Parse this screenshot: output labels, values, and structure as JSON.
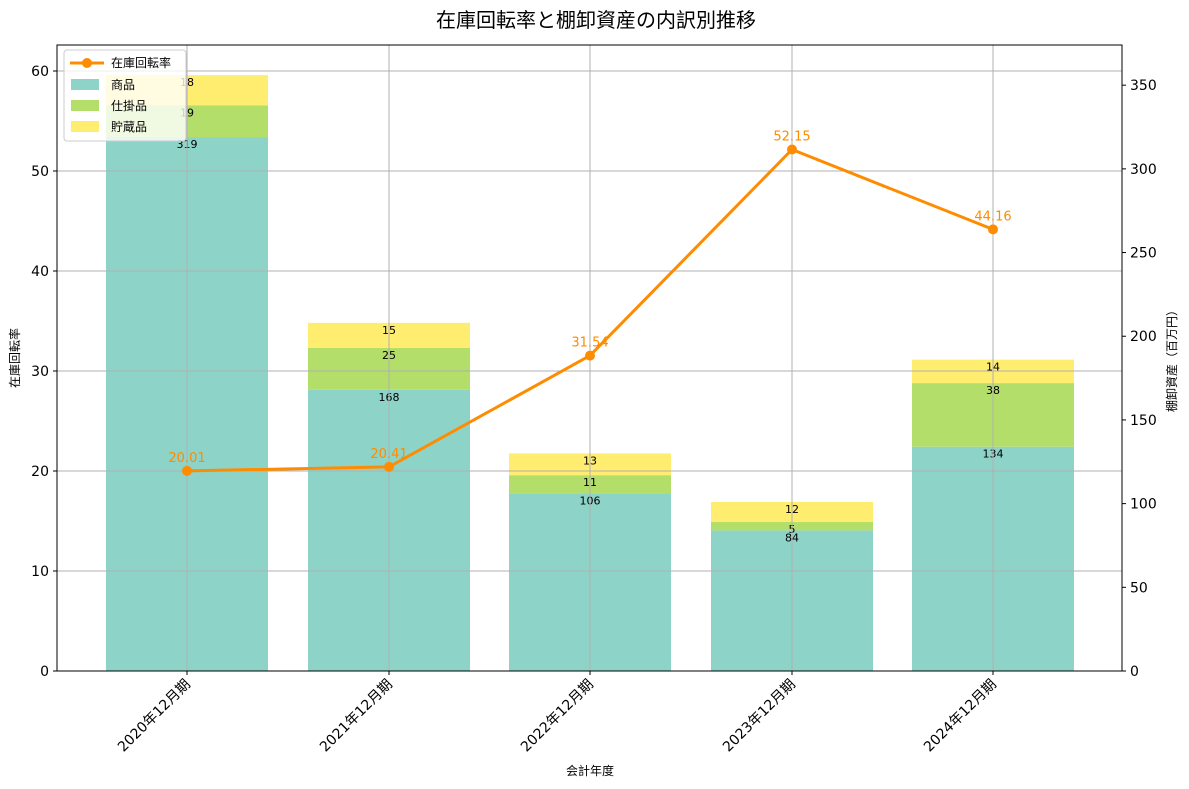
{
  "chart_data": {
    "type": "bar+line",
    "title": "在庫回転率と棚卸資産の内訳別推移",
    "xlabel": "会計年度",
    "ylabel_left": "在庫回転率",
    "ylabel_right": "棚卸資産（百万円）",
    "categories": [
      "2020年12月期",
      "2021年12月期",
      "2022年12月期",
      "2023年12月期",
      "2024年12月期"
    ],
    "bar_series": [
      {
        "name": "商品",
        "color": "#8dd3c7",
        "values": [
          319,
          168,
          106,
          84,
          134
        ]
      },
      {
        "name": "仕掛品",
        "color": "#b3de69",
        "values": [
          19,
          25,
          11,
          5,
          38
        ]
      },
      {
        "name": "貯蔵品",
        "color": "#ffed6f",
        "values": [
          18,
          15,
          13,
          12,
          14
        ]
      }
    ],
    "line_series": {
      "name": "在庫回転率",
      "color": "#ff8c00",
      "values": [
        20.01,
        20.41,
        31.54,
        52.15,
        44.16
      ],
      "labels": [
        "20.01",
        "20.41",
        "31.54",
        "52.15",
        "44.16"
      ]
    },
    "ylim_left": [
      0,
      62.6
    ],
    "ylim_right": [
      0,
      374
    ],
    "yticks_left": [
      0,
      10,
      20,
      30,
      40,
      50,
      60
    ],
    "yticks_right": [
      0,
      50,
      100,
      150,
      200,
      250,
      300,
      350
    ],
    "grid": true,
    "legend_position": "upper left",
    "legend": [
      "在庫回転率",
      "商品",
      "仕掛品",
      "貯蔵品"
    ]
  }
}
